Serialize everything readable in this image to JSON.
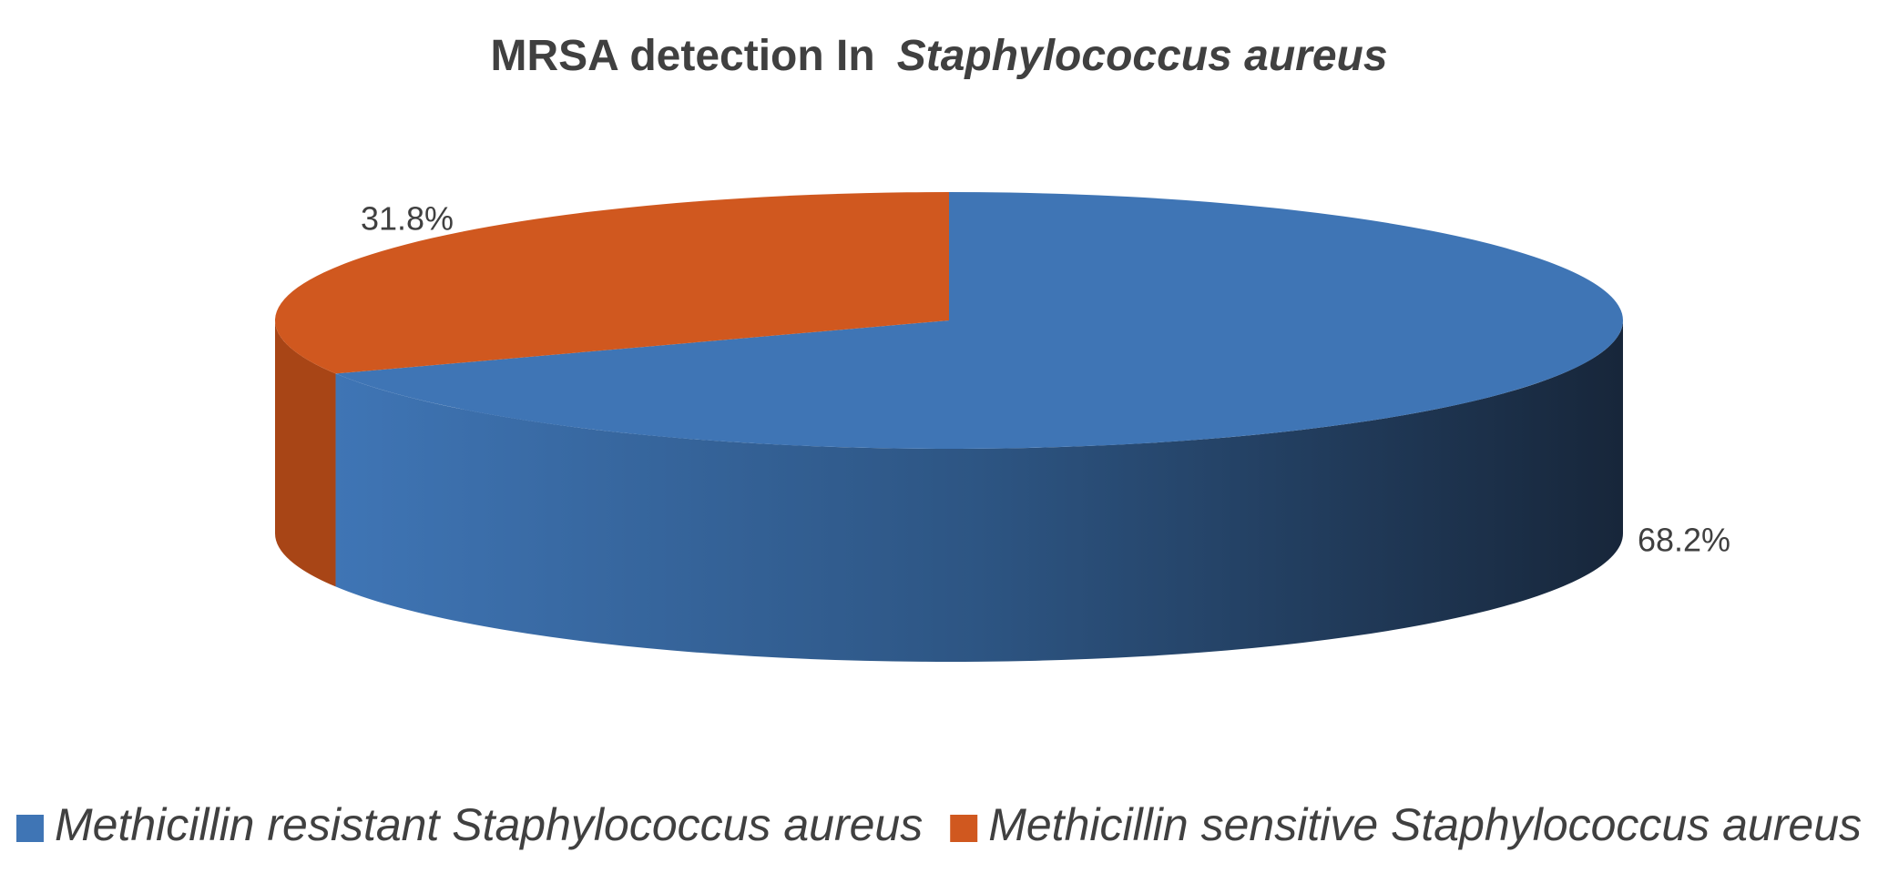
{
  "chart_data": {
    "type": "pie3d",
    "title": [
      "MRSA detection In",
      "Staphylococcus aureus"
    ],
    "categories": [
      "Methicillin resistant Staphylococcus aureus",
      "Methicillin sensitive Staphylococcus aureus"
    ],
    "values": [
      68.2,
      31.8
    ],
    "value_labels": [
      "68.2%",
      "31.8%"
    ],
    "colors": [
      "#3f75b5",
      "#d0581f"
    ],
    "legend": "bottom"
  }
}
